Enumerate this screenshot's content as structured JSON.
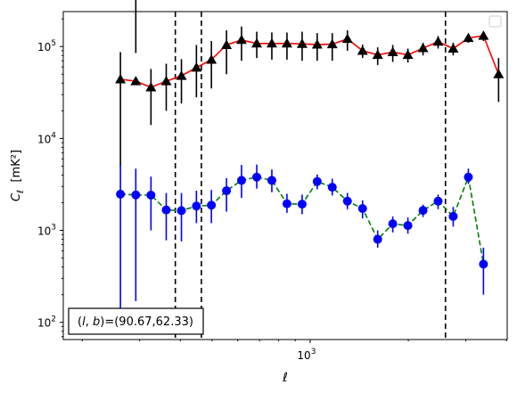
{
  "chart_data": {
    "type": "scatter",
    "title": "",
    "xlabel": "ℓ",
    "ylabel": "C_ℓ  [mK²]",
    "xscale": "log",
    "yscale": "log",
    "xlim": [
      175,
      4020
    ],
    "ylim": [
      65,
      240000
    ],
    "x_tick_labels": [
      {
        "value": 1000,
        "base": "10",
        "exp": "3"
      }
    ],
    "y_tick_labels": [
      {
        "value": 100,
        "base": "10",
        "exp": "2"
      },
      {
        "value": 1000,
        "base": "10",
        "exp": "3"
      },
      {
        "value": 10000,
        "base": "10",
        "exp": "4"
      },
      {
        "value": 100000,
        "base": "10",
        "exp": "5"
      }
    ],
    "grid": false,
    "legend": "upper right (empty)",
    "annotation": "(l, b)=(90.67,62.33)",
    "vlines": [
      386,
      464,
      2600
    ],
    "x": [
      190,
      212,
      236,
      262,
      292,
      325,
      362,
      403,
      448,
      498,
      554,
      616,
      686,
      763,
      849,
      945,
      1051,
      1169,
      1301,
      1448,
      1611,
      1792,
      1994,
      2219,
      2468,
      2746,
      3056,
      3400,
      3783
    ],
    "series": [
      {
        "name": "",
        "color": "#000000",
        "line_color": "#ff0000",
        "line_style": "solid",
        "marker": "triangle",
        "values": [
          44000,
          42000,
          36000,
          42000,
          48000,
          59000,
          72000,
          104000,
          118000,
          108000,
          108000,
          108000,
          107000,
          105000,
          106000,
          121000,
          90000,
          81000,
          87000,
          81000,
          96000,
          113000,
          95000,
          124000,
          131000,
          50000
        ],
        "x_index_start": 3,
        "err_low": [
          5000,
          0,
          14000,
          20000,
          24000,
          28000,
          35000,
          50000,
          70000,
          75000,
          72000,
          72000,
          70000,
          70000,
          70000,
          90000,
          75000,
          63000,
          68000,
          67000,
          80000,
          95000,
          80000,
          110000,
          115000,
          25000
        ],
        "err_high": [
          87000,
          85000,
          57000,
          65000,
          73000,
          104000,
          115000,
          150000,
          165000,
          145000,
          142000,
          142000,
          145000,
          140000,
          140000,
          150000,
          105000,
          98000,
          104000,
          95000,
          110000,
          130000,
          110000,
          137000,
          145000,
          75000
        ]
      },
      {
        "name": "",
        "color": "#0000ff",
        "line_color": "#008000",
        "line_style": "dashed",
        "marker": "circle",
        "values": [
          2480,
          2430,
          2420,
          1670,
          1640,
          1840,
          1880,
          2700,
          3500,
          3800,
          3500,
          1950,
          1930,
          3400,
          2950,
          2080,
          1730,
          800,
          1180,
          1130,
          1650,
          2080,
          1420,
          3800,
          430
        ],
        "x_index_start": 3,
        "err_low": [
          100,
          170,
          1000,
          780,
          760,
          1200,
          1200,
          1600,
          2250,
          2850,
          2600,
          1550,
          1500,
          2800,
          2400,
          1700,
          1350,
          650,
          950,
          920,
          1400,
          1700,
          1100,
          3200,
          200
        ],
        "err_high": [
          5200,
          4700,
          3850,
          2550,
          2550,
          2700,
          2750,
          3700,
          5150,
          5200,
          4600,
          2500,
          2450,
          4050,
          3650,
          2550,
          2120,
          1000,
          1420,
          1380,
          1900,
          2450,
          1800,
          4700,
          650
        ]
      }
    ]
  }
}
